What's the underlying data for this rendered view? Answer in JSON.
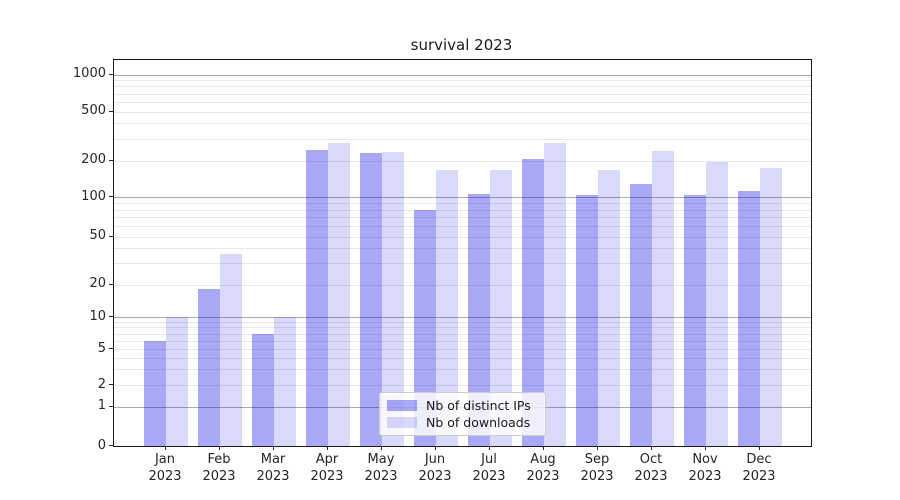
{
  "title": "survival 2023",
  "chart_data": {
    "type": "bar",
    "title": "survival 2023",
    "categories": [
      "Jan",
      "Feb",
      "Mar",
      "Apr",
      "May",
      "Jun",
      "Jul",
      "Aug",
      "Sep",
      "Oct",
      "Nov",
      "Dec"
    ],
    "year": "2023",
    "series": [
      {
        "key": "distinct-ips",
        "name": "Nb of distinct IPs",
        "color": "#0000e6",
        "alpha": 0.34,
        "values": [
          6,
          18,
          7,
          245,
          230,
          80,
          105,
          205,
          103,
          127,
          104,
          113
        ]
      },
      {
        "key": "downloads",
        "name": "Nb of downloads",
        "color": "#0000e6",
        "alpha": 0.15,
        "values": [
          10,
          36,
          10,
          280,
          233,
          168,
          168,
          275,
          168,
          240,
          195,
          172
        ]
      }
    ],
    "y_ticks": [
      0,
      1,
      2,
      5,
      10,
      20,
      50,
      100,
      200,
      500,
      1000
    ],
    "yscale": "log above 1, linear 0-1 (0 at baseline)",
    "ylim": [
      0,
      1300
    ],
    "grid": true,
    "legend": {
      "position": "bottom-center",
      "labels": [
        "Nb of distinct IPs",
        "Nb of downloads"
      ]
    }
  },
  "colors": {
    "major_grid": "#ababab",
    "minor_grid": "#e8e8e8",
    "spine": "#1a1a1a",
    "text": "#262626",
    "bar_base": "#0000e6"
  }
}
